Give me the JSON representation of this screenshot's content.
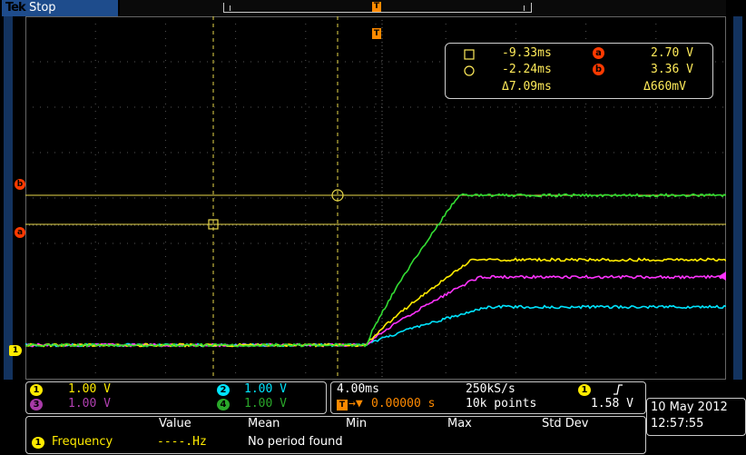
{
  "header": {
    "brand": "Tek",
    "state": "Stop",
    "trigger_marker": "T",
    "trigger_marker_top": "T"
  },
  "channel_markers": {
    "ch1": "1",
    "cursor_a": "a",
    "cursor_b": "b"
  },
  "cursor_readout": {
    "square_time": "-9.33ms",
    "circle_time": "-2.24ms",
    "delta_time": "Δ7.09ms",
    "a_label": "a",
    "a_value": "2.70 V",
    "b_label": "b",
    "b_value": "3.36 V",
    "delta_voltage": "Δ660mV"
  },
  "channels": [
    {
      "id": "1",
      "scale": "1.00 V",
      "color": "#ffeb00"
    },
    {
      "id": "2",
      "scale": "1.00 V",
      "color": "#00e5ff"
    },
    {
      "id": "3",
      "scale": "1.00 V",
      "color": "#ff33ff"
    },
    {
      "id": "4",
      "scale": "1.00 V",
      "color": "#33dd33"
    }
  ],
  "horizontal": {
    "timebase": "4.00ms",
    "sample_rate": "250kS/s",
    "trigger_position": "0.00000 s",
    "record_length": "10k points",
    "trigger_source": "1",
    "trigger_level": "1.58 V"
  },
  "measurement": {
    "headers": [
      "Value",
      "Mean",
      "Min",
      "Max",
      "Std Dev"
    ],
    "source": "1",
    "name": "Frequency",
    "value": "----.Hz",
    "message": "No period found"
  },
  "datetime": {
    "date": "10 May 2012",
    "time": "12:57:55"
  },
  "colors": {
    "ch1": "#ffeb00",
    "ch2": "#00e5ff",
    "ch3": "#ff33ff",
    "ch4": "#33dd33",
    "cursor": "#e8d84a",
    "brand_bar": "#1e4c8c",
    "trigger": "#ff8a00"
  },
  "waveform_levels": {
    "units": "V",
    "baseline": 0.0,
    "ch4_final": 3.35,
    "ch1_final": 2.0,
    "ch3_final": 1.6,
    "ch2_final": 1.05,
    "cursor_a": 2.7,
    "cursor_b": 3.36
  }
}
